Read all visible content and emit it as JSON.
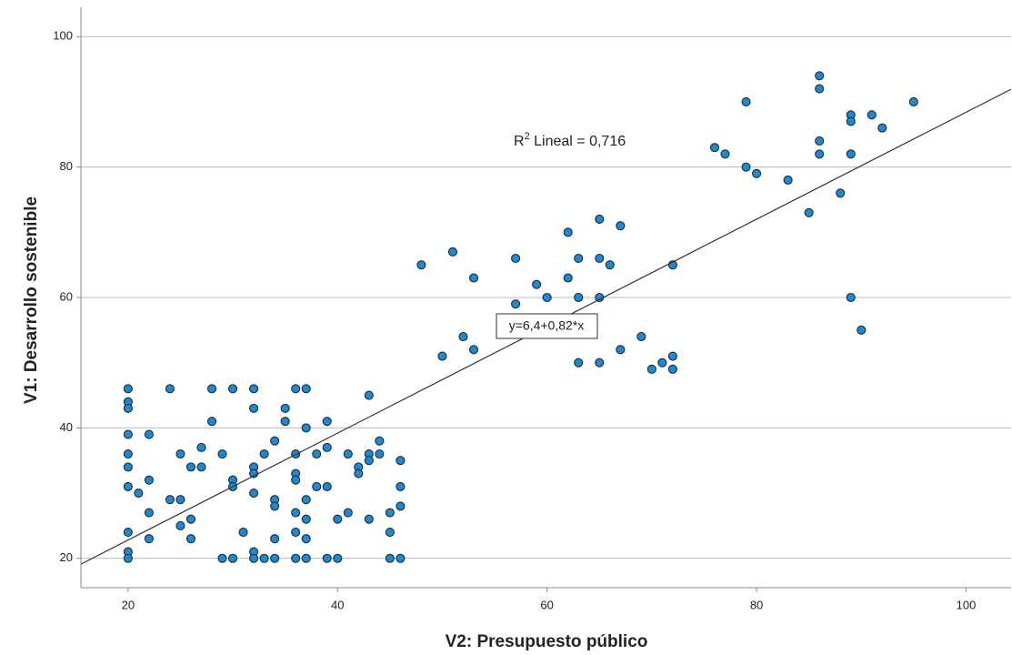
{
  "chart_data": {
    "type": "scatter",
    "x_label": "V2: Presupuesto público",
    "y_label": "V1: Desarrollo sostenible",
    "color": "#1e88d0",
    "x": [
      20,
      20,
      20,
      20,
      20,
      20,
      20,
      20,
      20,
      20,
      21,
      22,
      22,
      22,
      22,
      24,
      24,
      25,
      25,
      25,
      26,
      26,
      26,
      27,
      27,
      28,
      28,
      29,
      29,
      30,
      30,
      30,
      30,
      31,
      32,
      32,
      32,
      32,
      32,
      32,
      32,
      33,
      33,
      34,
      34,
      34,
      34,
      34,
      35,
      35,
      36,
      36,
      36,
      36,
      36,
      36,
      36,
      37,
      37,
      37,
      37,
      37,
      37,
      38,
      38,
      39,
      39,
      39,
      39,
      40,
      40,
      41,
      41,
      42,
      42,
      43,
      43,
      43,
      43,
      44,
      44,
      45,
      45,
      45,
      46,
      46,
      46,
      46,
      48,
      51,
      53,
      57,
      57,
      59,
      60,
      62,
      62,
      63,
      63,
      65,
      65,
      66,
      67,
      65,
      72,
      52,
      50,
      53,
      63,
      65,
      67,
      69,
      70,
      71,
      72,
      72,
      86,
      86,
      79,
      89,
      89,
      91,
      92,
      95,
      76,
      77,
      79,
      80,
      83,
      86,
      86,
      88,
      85,
      89,
      89,
      90
    ],
    "values": [
      46,
      44,
      43,
      39,
      36,
      34,
      31,
      24,
      21,
      20,
      30,
      39,
      32,
      27,
      23,
      46,
      29,
      36,
      29,
      25,
      34,
      26,
      23,
      37,
      34,
      46,
      41,
      36,
      20,
      46,
      32,
      31,
      20,
      24,
      46,
      43,
      34,
      33,
      30,
      21,
      20,
      36,
      20,
      38,
      29,
      28,
      23,
      20,
      43,
      41,
      46,
      36,
      33,
      32,
      27,
      24,
      20,
      46,
      40,
      29,
      26,
      23,
      20,
      36,
      31,
      41,
      37,
      31,
      20,
      26,
      20,
      36,
      27,
      34,
      33,
      45,
      36,
      35,
      26,
      38,
      36,
      27,
      24,
      20,
      35,
      31,
      28,
      20,
      65,
      67,
      63,
      66,
      59,
      62,
      60,
      70,
      63,
      66,
      60,
      72,
      66,
      65,
      71,
      60,
      65,
      54,
      51,
      52,
      50,
      50,
      52,
      54,
      49,
      50,
      51,
      49,
      94,
      92,
      90,
      88,
      87,
      88,
      86,
      90,
      83,
      82,
      80,
      79,
      78,
      84,
      82,
      76,
      73,
      82,
      60,
      55
    ],
    "xlim": [
      15.5,
      104.3
    ],
    "ylim": [
      15.5,
      104.5
    ],
    "xticks": [
      20,
      40,
      60,
      80,
      100
    ],
    "yticks": [
      20,
      40,
      60,
      80,
      100
    ],
    "grid": true,
    "fit": {
      "intercept": 6.4,
      "slope": 0.82,
      "label": "y=6,4+0,82*x"
    },
    "r2_label": {
      "base": "R",
      "sup": "2",
      "rest": " Lineal = 0,716"
    }
  }
}
